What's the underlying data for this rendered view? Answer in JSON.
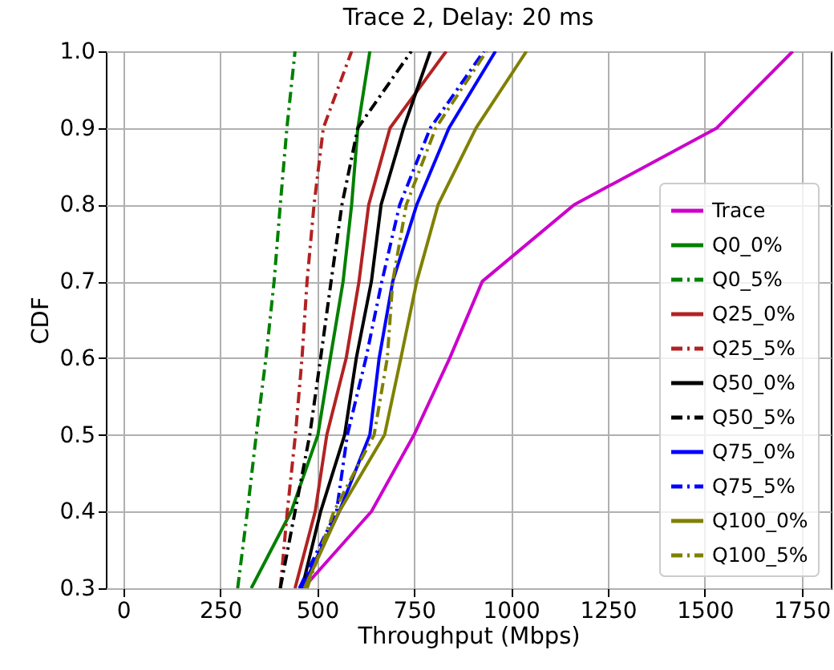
{
  "chart_data": {
    "type": "line",
    "title": "Trace 2, Delay: 20 ms",
    "xlabel": "Throughput (Mbps)",
    "ylabel": "CDF",
    "xlim": [
      -45,
      1825
    ],
    "xticks": [
      0,
      250,
      500,
      750,
      1000,
      1250,
      1500,
      1750
    ],
    "ylim": [
      0.3,
      1.0
    ],
    "yticks": [
      0.3,
      0.4,
      0.5,
      0.6,
      0.7,
      0.8,
      0.9,
      {
        "value": 1.0,
        "label": "1.0"
      }
    ],
    "grid": true,
    "legend": "bottom right",
    "series": [
      {
        "name": "Trace",
        "color": "#cc00cc",
        "line_style": "solid",
        "x": [
          464,
          640,
          750,
          842,
          926,
          1163,
          1531,
          1727
        ],
        "values": [
          0.3,
          0.4,
          0.5,
          0.6,
          0.7,
          0.8,
          0.9,
          1.0
        ]
      },
      {
        "name": "Q0_0%",
        "color": "#008000",
        "line_style": "solid",
        "x": [
          330,
          433,
          502,
          534,
          567,
          589,
          605,
          636
        ],
        "values": [
          0.3,
          0.4,
          0.5,
          0.6,
          0.7,
          0.8,
          0.9,
          1.0
        ]
      },
      {
        "name": "Q0_5%",
        "color": "#008000",
        "line_style": "dashdot",
        "x": [
          295,
          320,
          343,
          368,
          389,
          405,
          422,
          443
        ],
        "values": [
          0.3,
          0.4,
          0.5,
          0.6,
          0.7,
          0.8,
          0.9,
          1.0
        ]
      },
      {
        "name": "Q25_0%",
        "color": "#b22222",
        "line_style": "solid",
        "x": [
          443,
          495,
          525,
          575,
          608,
          633,
          688,
          833
        ],
        "values": [
          0.3,
          0.4,
          0.5,
          0.6,
          0.7,
          0.8,
          0.9,
          1.0
        ]
      },
      {
        "name": "Q25_5%",
        "color": "#b22222",
        "line_style": "dashdot",
        "x": [
          405,
          423,
          444,
          461,
          474,
          492,
          516,
          589
        ],
        "values": [
          0.3,
          0.4,
          0.5,
          0.6,
          0.7,
          0.8,
          0.9,
          1.0
        ]
      },
      {
        "name": "Q50_0%",
        "color": "#000000",
        "line_style": "solid",
        "x": [
          461,
          509,
          571,
          601,
          640,
          665,
          723,
          792
        ],
        "values": [
          0.3,
          0.4,
          0.5,
          0.6,
          0.7,
          0.8,
          0.9,
          1.0
        ]
      },
      {
        "name": "Q50_5%",
        "color": "#000000",
        "line_style": "dashdot",
        "x": [
          405,
          443,
          481,
          509,
          536,
          564,
          605,
          743
        ],
        "values": [
          0.3,
          0.4,
          0.5,
          0.6,
          0.7,
          0.8,
          0.9,
          1.0
        ]
      },
      {
        "name": "Q75_0%",
        "color": "#0000ff",
        "line_style": "solid",
        "x": [
          461,
          557,
          636,
          660,
          695,
          757,
          840,
          960
        ],
        "values": [
          0.3,
          0.4,
          0.5,
          0.6,
          0.7,
          0.8,
          0.9,
          1.0
        ]
      },
      {
        "name": "Q75_5%",
        "color": "#0000ff",
        "line_style": "dashdot",
        "x": [
          454,
          550,
          578,
          626,
          667,
          713,
          792,
          930
        ],
        "values": [
          0.3,
          0.4,
          0.5,
          0.6,
          0.7,
          0.8,
          0.9,
          1.0
        ]
      },
      {
        "name": "Q100_0%",
        "color": "#808000",
        "line_style": "solid",
        "x": [
          467,
          557,
          674,
          716,
          757,
          812,
          910,
          1040
        ],
        "values": [
          0.3,
          0.4,
          0.5,
          0.6,
          0.7,
          0.8,
          0.9,
          1.0
        ]
      },
      {
        "name": "Q100_5%",
        "color": "#808000",
        "line_style": "dashdot",
        "x": [
          474,
          543,
          647,
          681,
          695,
          730,
          806,
          937
        ],
        "values": [
          0.3,
          0.4,
          0.5,
          0.6,
          0.7,
          0.8,
          0.9,
          1.0
        ]
      }
    ]
  }
}
